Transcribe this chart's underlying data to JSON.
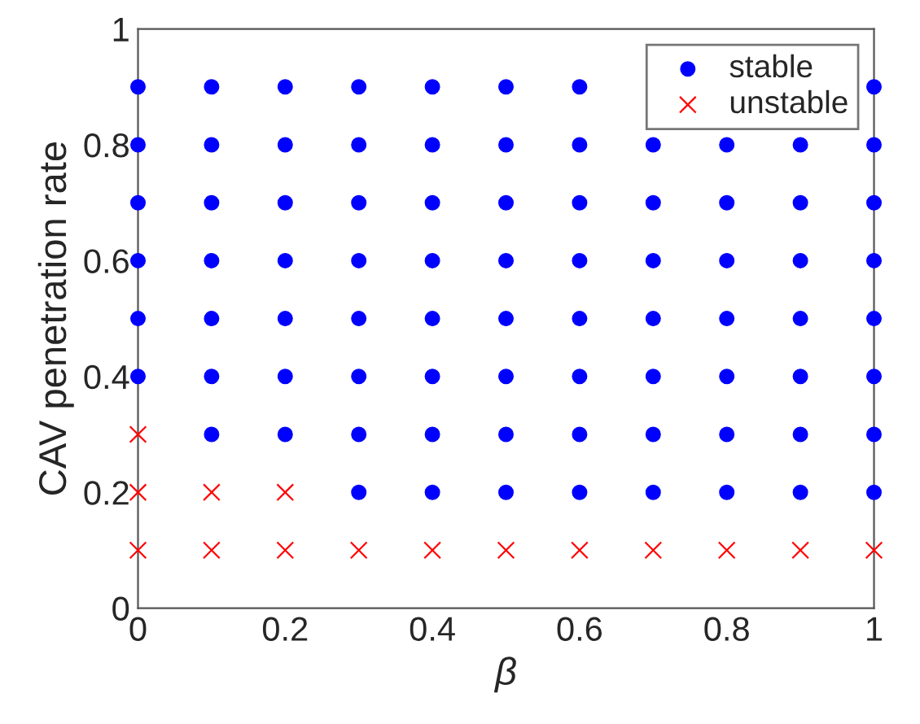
{
  "chart_data": {
    "type": "scatter",
    "xlabel": "β",
    "ylabel": "CAV penetration rate",
    "xlim": [
      0,
      1
    ],
    "ylim": [
      0,
      1
    ],
    "xticks": [
      0,
      0.2,
      0.4,
      0.6,
      0.8,
      1
    ],
    "yticks": [
      0,
      0.2,
      0.4,
      0.6,
      0.8,
      1
    ],
    "grid": false,
    "legend": "top right",
    "series": [
      {
        "name": "stable",
        "color": "#0000ff",
        "marker": "circle",
        "x": [
          0,
          0,
          0,
          0,
          0,
          0,
          0.1,
          0.1,
          0.1,
          0.1,
          0.1,
          0.1,
          0.1,
          0.2,
          0.2,
          0.2,
          0.2,
          0.2,
          0.2,
          0.2,
          0.3,
          0.3,
          0.3,
          0.3,
          0.3,
          0.3,
          0.3,
          0.3,
          0.4,
          0.4,
          0.4,
          0.4,
          0.4,
          0.4,
          0.4,
          0.4,
          0.5,
          0.5,
          0.5,
          0.5,
          0.5,
          0.5,
          0.5,
          0.5,
          0.6,
          0.6,
          0.6,
          0.6,
          0.6,
          0.6,
          0.6,
          0.6,
          0.7,
          0.7,
          0.7,
          0.7,
          0.7,
          0.7,
          0.7,
          0.8,
          0.8,
          0.8,
          0.8,
          0.8,
          0.8,
          0.8,
          0.9,
          0.9,
          0.9,
          0.9,
          0.9,
          0.9,
          0.9,
          1,
          1,
          1,
          1,
          1,
          1,
          1,
          1
        ],
        "values": [
          0.4,
          0.5,
          0.6,
          0.7,
          0.8,
          0.9,
          0.3,
          0.4,
          0.5,
          0.6,
          0.7,
          0.8,
          0.9,
          0.3,
          0.4,
          0.5,
          0.6,
          0.7,
          0.8,
          0.9,
          0.2,
          0.3,
          0.4,
          0.5,
          0.6,
          0.7,
          0.8,
          0.9,
          0.2,
          0.3,
          0.4,
          0.5,
          0.6,
          0.7,
          0.8,
          0.9,
          0.2,
          0.3,
          0.4,
          0.5,
          0.6,
          0.7,
          0.8,
          0.9,
          0.2,
          0.3,
          0.4,
          0.5,
          0.6,
          0.7,
          0.8,
          0.9,
          0.2,
          0.3,
          0.4,
          0.5,
          0.6,
          0.7,
          0.8,
          0.2,
          0.3,
          0.4,
          0.5,
          0.6,
          0.7,
          0.8,
          0.2,
          0.3,
          0.4,
          0.5,
          0.6,
          0.7,
          0.8,
          0.2,
          0.3,
          0.4,
          0.5,
          0.6,
          0.7,
          0.8,
          0.9
        ]
      },
      {
        "name": "unstable",
        "color": "#ff0000",
        "marker": "cross",
        "x": [
          0,
          0,
          0,
          0.1,
          0.1,
          0.2,
          0.2,
          0.3,
          0.4,
          0.5,
          0.6,
          0.7,
          0.8,
          0.9,
          1
        ],
        "values": [
          0.1,
          0.2,
          0.3,
          0.1,
          0.2,
          0.1,
          0.2,
          0.1,
          0.1,
          0.1,
          0.1,
          0.1,
          0.1,
          0.1,
          0.1
        ]
      }
    ]
  }
}
